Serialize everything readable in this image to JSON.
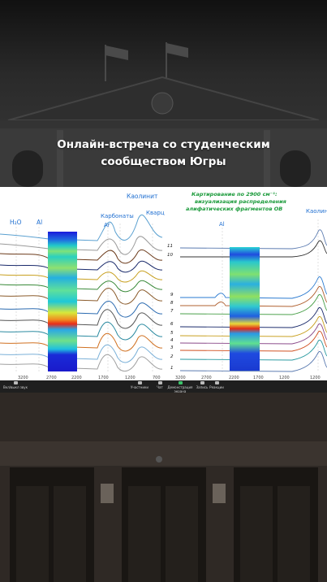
{
  "headline": {
    "line1": "Онлайн-встреча со студенческим",
    "line2": "сообществом Югры"
  },
  "slide": {
    "left": {
      "labels": {
        "h2o": "H₂O",
        "al": "Al",
        "carbonates": "Карбонаты",
        "ar": "Ar",
        "kaolinite": "Каолинит",
        "quartz": "Кварц"
      },
      "xticks": [
        "3200",
        "2700",
        "2200",
        "1700",
        "1200",
        "700"
      ]
    },
    "right": {
      "title1": "Картирование по 2900 см⁻¹:",
      "title2": "визуализация распределения",
      "title3": "алифатических фрагментов ОВ",
      "labels": {
        "al": "Al",
        "kaolinite": "Каолин"
      },
      "row_numbers": [
        "11",
        "10",
        "9",
        "8",
        "7",
        "6",
        "5",
        "4",
        "3",
        "2",
        "1"
      ],
      "xticks": [
        "3200",
        "2700",
        "2200",
        "1700",
        "1200"
      ]
    }
  },
  "toolbar": {
    "items": [
      {
        "label": "Вкл/выкл звук",
        "icon": "microphone-icon"
      },
      {
        "label": "Участники",
        "icon": "participants-icon"
      },
      {
        "label": "Чат",
        "icon": "chat-icon"
      },
      {
        "label": "Демонстрация экрана",
        "icon": "share-screen-icon"
      },
      {
        "label": "Запись",
        "icon": "record-icon"
      },
      {
        "label": "Реакции",
        "icon": "reactions-icon"
      }
    ]
  },
  "colors": {
    "accent_blue": "#1f6fd1",
    "title_green": "#1a9a3a",
    "toolbar_bg": "#1f1f1f"
  }
}
